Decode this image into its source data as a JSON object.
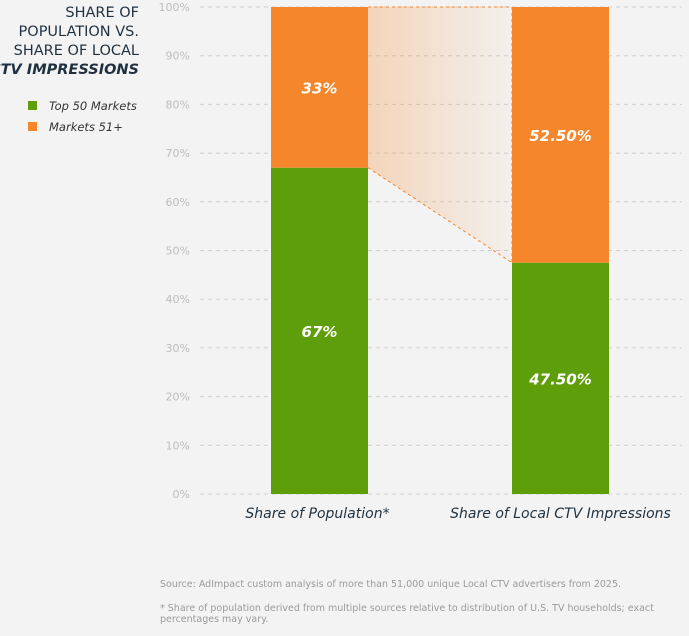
{
  "chart_data": {
    "type": "bar",
    "stacked": true,
    "title_lines": [
      "SHARE OF",
      "POPULATION VS.",
      "SHARE OF LOCAL"
    ],
    "title_emphasis": "CTV IMPRESSIONS",
    "categories": [
      "Share of Population*",
      "Share of Local CTV Impressions"
    ],
    "series": [
      {
        "name": "Top 50 Markets",
        "values": [
          67,
          47.5
        ],
        "labels": [
          "67%",
          "47.50%"
        ],
        "color": "#5e9e0b"
      },
      {
        "name": "Markets 51+",
        "values": [
          33,
          52.5
        ],
        "labels": [
          "33%",
          "52.50%"
        ],
        "color": "#f5862b"
      }
    ],
    "ylim": [
      0,
      100
    ],
    "yticks": [
      "0%",
      "10%",
      "20%",
      "30%",
      "40%",
      "50%",
      "60%",
      "70%",
      "80%",
      "90%",
      "100%"
    ],
    "grid": true,
    "legend_placement": "left",
    "annotation": "dashed connector between bars highlighting shift"
  },
  "footnotes": {
    "source": "Source: AdImpact custom analysis of more than 51,000 unique Local CTV advertisers from 2025.",
    "note": "* Share of population derived from multiple sources relative to distribution of U.S. TV households; exact percentages may vary."
  }
}
